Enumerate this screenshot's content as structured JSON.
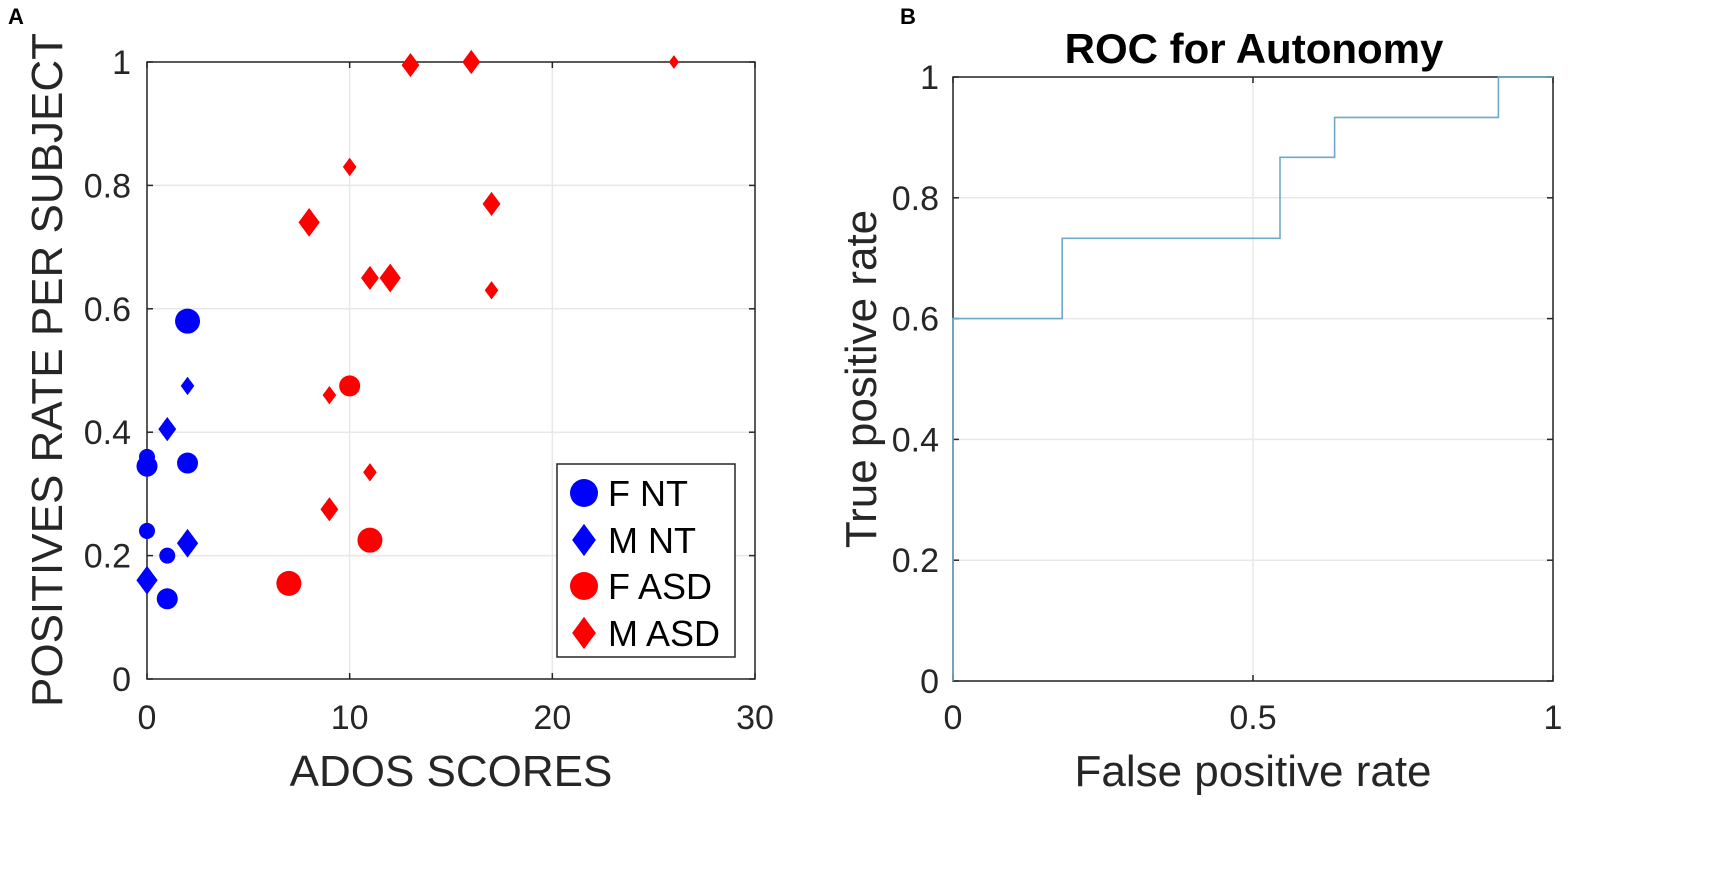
{
  "figure": {
    "panel_a_label": "A",
    "panel_b_label": "B"
  },
  "chart_data": [
    {
      "type": "scatter",
      "title": "",
      "xlabel": "ADOS SCORES",
      "ylabel": "POSITIVES RATE PER SUBJECT",
      "xlim": [
        0,
        30
      ],
      "ylim": [
        0,
        1
      ],
      "xticks": [
        0,
        10,
        20,
        30
      ],
      "yticks": [
        0,
        0.2,
        0.4,
        0.6,
        0.8,
        1
      ],
      "ytick_labels": [
        "0",
        "0.2",
        "0.4",
        "0.6",
        "0.8",
        "1"
      ],
      "xtick_labels": [
        "0",
        "10",
        "20",
        "30"
      ],
      "grid": true,
      "legend_position": "bottom-right",
      "series": [
        {
          "name": "F NT",
          "marker": "circle",
          "color": "#0000ff",
          "points": [
            {
              "x": 2,
              "y": 0.58,
              "size": "large"
            },
            {
              "x": 0,
              "y": 0.36,
              "size": "small"
            },
            {
              "x": 0,
              "y": 0.345,
              "size": "medium"
            },
            {
              "x": 2,
              "y": 0.35,
              "size": "medium"
            },
            {
              "x": 0,
              "y": 0.24,
              "size": "small"
            },
            {
              "x": 1,
              "y": 0.2,
              "size": "small"
            },
            {
              "x": 1,
              "y": 0.13,
              "size": "medium"
            }
          ]
        },
        {
          "name": "M NT",
          "marker": "diamond",
          "color": "#0000ff",
          "points": [
            {
              "x": 2,
              "y": 0.475,
              "size": "small"
            },
            {
              "x": 1,
              "y": 0.405,
              "size": "medium"
            },
            {
              "x": 2,
              "y": 0.22,
              "size": "large"
            },
            {
              "x": 0,
              "y": 0.16,
              "size": "large"
            }
          ]
        },
        {
          "name": "F ASD",
          "marker": "circle",
          "color": "#ff0000",
          "points": [
            {
              "x": 10,
              "y": 0.475,
              "size": "medium"
            },
            {
              "x": 11,
              "y": 0.225,
              "size": "large"
            },
            {
              "x": 7,
              "y": 0.155,
              "size": "large"
            }
          ]
        },
        {
          "name": "M ASD",
          "marker": "diamond",
          "color": "#ff0000",
          "points": [
            {
              "x": 13,
              "y": 0.995,
              "size": "medium"
            },
            {
              "x": 16,
              "y": 1.0,
              "size": "medium"
            },
            {
              "x": 26,
              "y": 1.0,
              "size": "tiny"
            },
            {
              "x": 10,
              "y": 0.83,
              "size": "small"
            },
            {
              "x": 8,
              "y": 0.74,
              "size": "large"
            },
            {
              "x": 17,
              "y": 0.77,
              "size": "medium"
            },
            {
              "x": 11,
              "y": 0.65,
              "size": "medium"
            },
            {
              "x": 12,
              "y": 0.65,
              "size": "large"
            },
            {
              "x": 17,
              "y": 0.63,
              "size": "small"
            },
            {
              "x": 9,
              "y": 0.46,
              "size": "small"
            },
            {
              "x": 11,
              "y": 0.335,
              "size": "small"
            },
            {
              "x": 9,
              "y": 0.275,
              "size": "medium"
            }
          ]
        }
      ],
      "legend": [
        "F NT",
        "M NT",
        "F ASD",
        "M ASD"
      ]
    },
    {
      "type": "line",
      "title": "ROC for Autonomy",
      "xlabel": "False positive rate",
      "ylabel": "True positive rate",
      "xlim": [
        0,
        1
      ],
      "ylim": [
        0,
        1
      ],
      "xticks": [
        0,
        0.5,
        1
      ],
      "xtick_labels": [
        "0",
        "0.5",
        "1"
      ],
      "yticks": [
        0,
        0.2,
        0.4,
        0.6,
        0.8,
        1
      ],
      "ytick_labels": [
        "0",
        "0.2",
        "0.4",
        "0.6",
        "0.8",
        "1"
      ],
      "grid": true,
      "line_color": "#6fa8c8",
      "series": [
        {
          "name": "ROC",
          "x": [
            0,
            0,
            0.182,
            0.182,
            0.545,
            0.545,
            0.636,
            0.636,
            0.909,
            0.909,
            1
          ],
          "y": [
            0,
            0.6,
            0.6,
            0.733,
            0.733,
            0.867,
            0.867,
            0.933,
            0.933,
            1,
            1
          ]
        }
      ]
    }
  ]
}
